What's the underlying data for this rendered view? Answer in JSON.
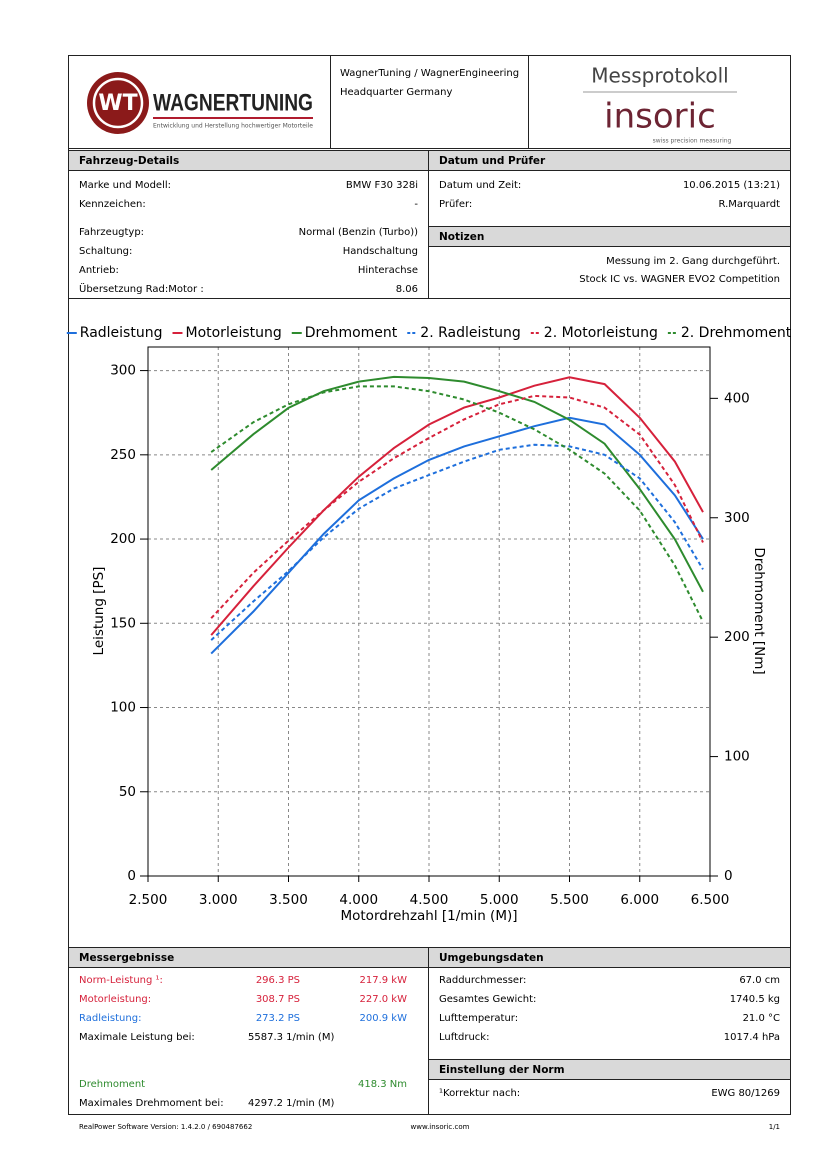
{
  "header": {
    "logo_mark": "WT",
    "brand": "WAGNERTUNING",
    "brand_tagline": "Entwicklung und Herstellung hochwertiger Motorteile",
    "company_lines": [
      "WagnerTuning / WagnerEngineering",
      "Headquarter Germany"
    ],
    "protocol_title": "Messprotokoll",
    "vendor": "insoric",
    "vendor_tagline": "swiss precision measuring"
  },
  "vehicle": {
    "title": "Fahrzeug-Details",
    "rows": [
      [
        "Marke und Modell:",
        "BMW F30 328i"
      ],
      [
        "Kennzeichen:",
        "-"
      ],
      [
        "Fahrzeugtyp:",
        "Normal (Benzin (Turbo))"
      ],
      [
        "Schaltung:",
        "Handschaltung"
      ],
      [
        "Antrieb:",
        "Hinterachse"
      ],
      [
        "Übersetzung Rad:Motor :",
        "8.06"
      ]
    ]
  },
  "inspection": {
    "title": "Datum und Prüfer",
    "rows": [
      [
        "Datum und Zeit:",
        "10.06.2015 (13:21)"
      ],
      [
        "Prüfer:",
        "R.Marquardt"
      ]
    ]
  },
  "notes": {
    "title": "Notizen",
    "lines": [
      "Messung im 2. Gang durchgeführt.",
      "Stock IC vs. WAGNER EVO2 Competition"
    ]
  },
  "chart_data": {
    "type": "line",
    "x_label": "Motordrehzahl [1/min (M)]",
    "y_label": "Leistung [PS]",
    "y2_label": "Drehmoment [Nm]",
    "x": [
      2950,
      3250,
      3500,
      3750,
      4000,
      4250,
      4500,
      4750,
      5000,
      5250,
      5500,
      5750,
      6000,
      6250,
      6450
    ],
    "xlim": [
      2500,
      6500
    ],
    "xticks": [
      {
        "value": 2500,
        "label": "2.500"
      },
      {
        "value": 3000,
        "label": "3.000"
      },
      {
        "value": 3500,
        "label": "3.500"
      },
      {
        "value": 4000,
        "label": "4.000"
      },
      {
        "value": 4500,
        "label": "4.500"
      },
      {
        "value": 5000,
        "label": "5.000"
      },
      {
        "value": 5500,
        "label": "5.500"
      },
      {
        "value": 6000,
        "label": "6.000"
      },
      {
        "value": 6500,
        "label": "6.500"
      }
    ],
    "ylim": [
      0,
      314
    ],
    "yticks": [
      0,
      50,
      100,
      150,
      200,
      250,
      300
    ],
    "y2lim": [
      0,
      443
    ],
    "y2ticks": [
      0,
      100,
      200,
      300,
      400
    ],
    "grid": true,
    "series": [
      {
        "name": "Radleistung",
        "color": "#1e6fdc",
        "dashed": false,
        "values": [
          132,
          157,
          180,
          203,
          223,
          236,
          247,
          255,
          261,
          267,
          272,
          268,
          250,
          226,
          200
        ]
      },
      {
        "name": "Motorleistung",
        "color": "#d6213b",
        "dashed": false,
        "values": [
          143,
          172,
          195,
          217,
          237,
          254,
          268,
          278,
          284,
          291,
          296,
          292,
          272,
          246,
          216
        ]
      },
      {
        "name": "Drehmoment",
        "color": "#2e8b2e",
        "dashed": false,
        "axis": "y2",
        "values": [
          340,
          370,
          392,
          406,
          414,
          418,
          417,
          414,
          406,
          397,
          382,
          362,
          324,
          282,
          238
        ]
      },
      {
        "name": "2. Radleistung",
        "color": "#1e6fdc",
        "dashed": true,
        "values": [
          140,
          163,
          181,
          201,
          218,
          230,
          238,
          246,
          253,
          256,
          255,
          250,
          236,
          210,
          182
        ]
      },
      {
        "name": "2. Motorleistung",
        "color": "#d6213b",
        "dashed": true,
        "values": [
          153,
          180,
          199,
          217,
          234,
          248,
          260,
          271,
          280,
          285,
          284,
          278,
          262,
          232,
          198
        ]
      },
      {
        "name": "2. Drehmoment",
        "color": "#2e8b2e",
        "dashed": true,
        "axis": "y2",
        "values": [
          355,
          380,
          395,
          405,
          410,
          410,
          406,
          399,
          388,
          374,
          357,
          337,
          306,
          260,
          213
        ]
      }
    ]
  },
  "results": {
    "title": "Messergebnisse",
    "rows": [
      {
        "label": "Norm-Leistung ¹:",
        "ps": "296.3 PS",
        "kw": "217.9 kW",
        "color": "#d6213b"
      },
      {
        "label": "Motorleistung:",
        "ps": "308.7 PS",
        "kw": "227.0 kW",
        "color": "#d6213b"
      },
      {
        "label": "Radleistung:",
        "ps": "273.2 PS",
        "kw": "200.9 kW",
        "color": "#1e6fdc"
      },
      {
        "label": "Maximale Leistung bei:",
        "rpm": "5587.3 1/min (M)"
      },
      {
        "label": "Drehmoment",
        "nm": "418.3 Nm",
        "color": "#2e8b2e"
      },
      {
        "label": "Maximales Drehmoment bei:",
        "rpm": "4297.2 1/min (M)"
      }
    ]
  },
  "environment": {
    "title": "Umgebungsdaten",
    "rows": [
      [
        "Raddurchmesser:",
        "67.0 cm"
      ],
      [
        "Gesamtes Gewicht:",
        "1740.5 kg"
      ],
      [
        "Lufttemperatur:",
        "21.0 °C"
      ],
      [
        "Luftdruck:",
        "1017.4 hPa"
      ]
    ]
  },
  "norm": {
    "title": "Einstellung der Norm",
    "rows": [
      [
        "¹Korrektur nach:",
        "EWG 80/1269"
      ]
    ]
  },
  "footer": {
    "software": "RealPower Software Version: 1.4.2.0 / 690487662",
    "website": "www.insoric.com",
    "page": "1/1"
  }
}
